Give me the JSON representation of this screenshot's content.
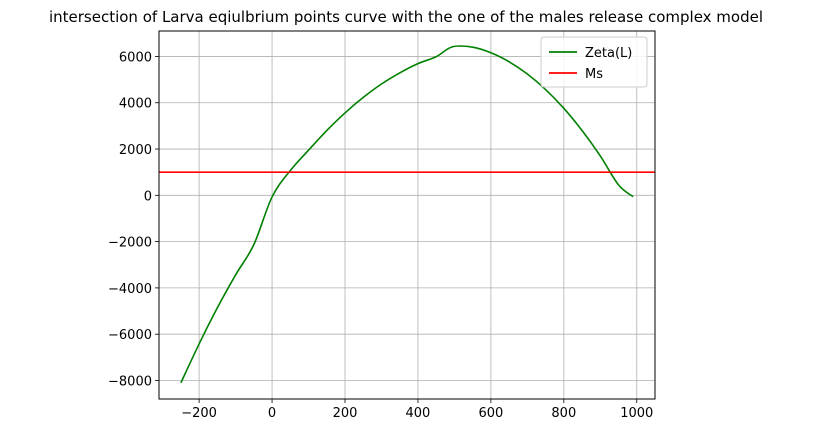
{
  "chart_data": {
    "type": "line",
    "title": "intersection of Larva eqiulbrium points curve with the one of the males release complex model",
    "xlabel": "",
    "ylabel": "",
    "xlim": [
      -310,
      1050
    ],
    "ylim": [
      -8800,
      7100
    ],
    "xticks": [
      -200,
      0,
      200,
      400,
      600,
      800,
      1000
    ],
    "yticks": [
      -8000,
      -6000,
      -4000,
      -2000,
      0,
      2000,
      4000,
      6000
    ],
    "grid": true,
    "legend_position": "top-right",
    "series": [
      {
        "name": "Zeta(L)",
        "color": "#008000",
        "kind": "curve",
        "x": [
          -250,
          -200,
          -150,
          -100,
          -50,
          0,
          50,
          100,
          150,
          200,
          250,
          300,
          350,
          400,
          450,
          495,
          550,
          600,
          650,
          700,
          750,
          800,
          850,
          900,
          950,
          990
        ],
        "y": [
          -8100,
          -6420,
          -4860,
          -3440,
          -2130,
          -70,
          1070,
          1950,
          2800,
          3560,
          4230,
          4810,
          5290,
          5690,
          5990,
          6420,
          6400,
          6160,
          5770,
          5240,
          4570,
          3760,
          2800,
          1700,
          450,
          -60
        ]
      },
      {
        "name": "Ms",
        "color": "#ff0000",
        "kind": "hline",
        "y": 1000
      }
    ]
  }
}
